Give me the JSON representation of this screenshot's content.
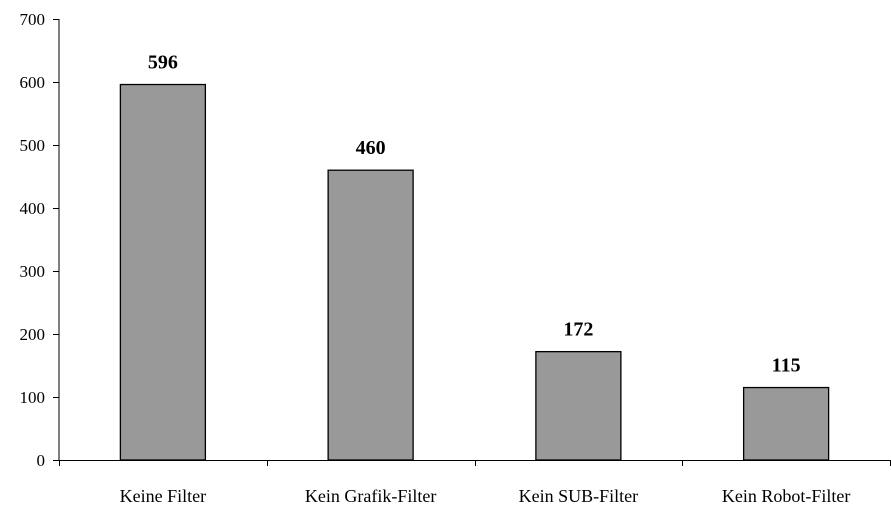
{
  "chart_data": {
    "type": "bar",
    "title": "",
    "xlabel": "",
    "ylabel": "",
    "categories": [
      "Keine Filter",
      "Kein Grafik-Filter",
      "Kein SUB-Filter",
      "Kein Robot-Filter"
    ],
    "values": [
      596,
      460,
      172,
      115
    ],
    "data_labels": [
      "596",
      "460",
      "172",
      "115"
    ],
    "ylim": [
      0,
      700
    ],
    "yticks": [
      0,
      100,
      200,
      300,
      400,
      500,
      600,
      700
    ],
    "ytick_labels": [
      "0",
      "100",
      "200",
      "300",
      "400",
      "500",
      "600",
      "700"
    ],
    "grid": false,
    "legend": "none",
    "colors": {
      "bar_fill": "#999999",
      "bar_stroke": "#000000",
      "axis": "#000000"
    }
  }
}
